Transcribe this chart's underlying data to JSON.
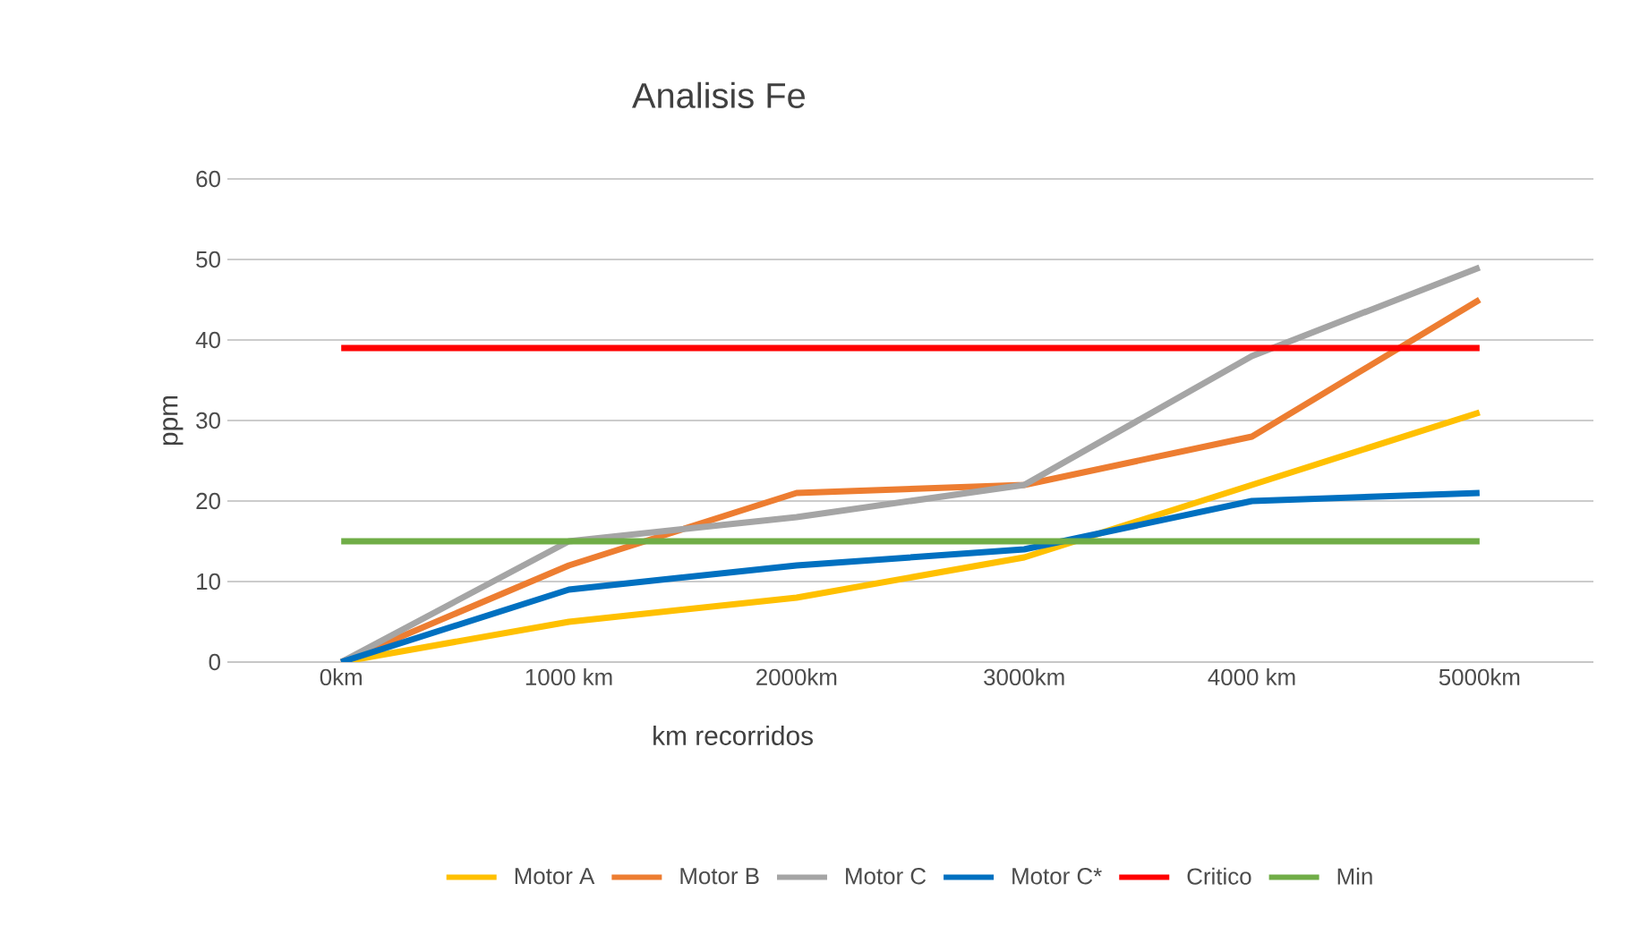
{
  "chart_data": {
    "type": "line",
    "title": "Analisis Fe",
    "xlabel": "km recorridos",
    "ylabel": "ppm",
    "categories": [
      "0km",
      "1000 km",
      "2000km",
      "3000km",
      "4000 km",
      "5000km"
    ],
    "series": [
      {
        "name": "Motor A",
        "color": "#ffc000",
        "values": [
          0,
          5,
          8,
          13,
          22,
          31
        ]
      },
      {
        "name": "Motor B",
        "color": "#ed7d31",
        "values": [
          0,
          12,
          21,
          22,
          28,
          45
        ]
      },
      {
        "name": "Motor C",
        "color": "#a5a5a5",
        "values": [
          0,
          15,
          18,
          22,
          38,
          49
        ]
      },
      {
        "name": "Motor C*",
        "color": "#0070c0",
        "values": [
          0,
          9,
          12,
          14,
          20,
          21
        ]
      },
      {
        "name": "Critico",
        "color": "#ff0000",
        "values": [
          39,
          39,
          39,
          39,
          39,
          39
        ]
      },
      {
        "name": "Min",
        "color": "#70ad47",
        "values": [
          15,
          15,
          15,
          15,
          15,
          15
        ]
      }
    ],
    "ylim": [
      0,
      60
    ],
    "yticks": [
      0,
      10,
      20,
      30,
      40,
      50,
      60
    ],
    "grid": "y",
    "legend": "bottom",
    "marker": "none",
    "line_style": "solid"
  }
}
